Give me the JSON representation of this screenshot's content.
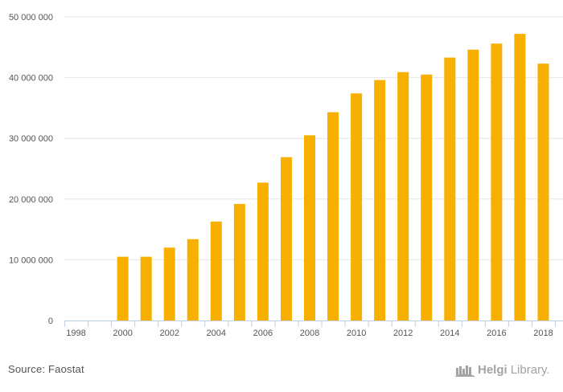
{
  "chart_data": {
    "type": "bar",
    "categories": [
      "1998",
      "1999",
      "2000",
      "2001",
      "2002",
      "2003",
      "2004",
      "2005",
      "2006",
      "2007",
      "2008",
      "2009",
      "2010",
      "2011",
      "2012",
      "2013",
      "2014",
      "2015",
      "2016",
      "2017",
      "2018"
    ],
    "tick_labels_x": [
      "1998",
      "2000",
      "2002",
      "2004",
      "2006",
      "2008",
      "2010",
      "2012",
      "2014",
      "2016",
      "2018"
    ],
    "values": [
      0,
      0,
      10500000,
      10500000,
      12000000,
      13400000,
      16300000,
      19200000,
      22700000,
      26900000,
      30500000,
      34300000,
      37400000,
      39600000,
      40900000,
      40500000,
      43300000,
      44600000,
      45600000,
      47200000,
      42300000
    ],
    "ylim": [
      0,
      50000000
    ],
    "yticks": [
      0,
      10000000,
      20000000,
      30000000,
      40000000,
      50000000
    ],
    "ytick_labels": [
      "0",
      "10 000 000",
      "20 000 000",
      "30 000 000",
      "40 000 000",
      "50 000 000"
    ],
    "grid": true,
    "bar_color": "#f7b000",
    "title": "",
    "xlabel": "",
    "ylabel": ""
  },
  "footer": {
    "source": "Source: Faostat",
    "brand_bold": "Helgi",
    "brand_light": "Library."
  },
  "colors": {
    "grid": "#e6e6e6",
    "axis": "#c0d0e0",
    "text": "#555555",
    "brand": "#a3a3a3"
  }
}
